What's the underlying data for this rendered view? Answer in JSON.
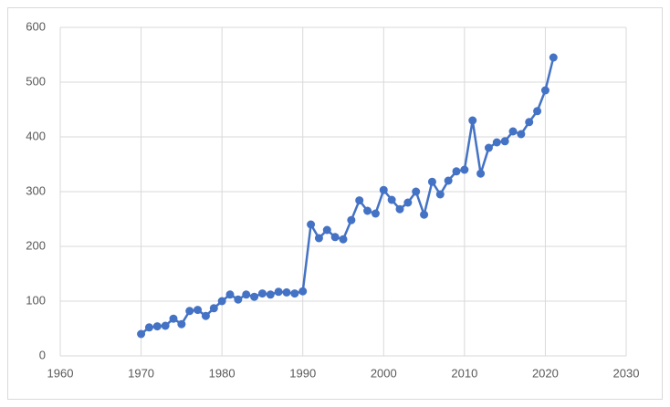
{
  "chart_data": {
    "type": "line",
    "x": [
      1970,
      1971,
      1972,
      1973,
      1974,
      1975,
      1976,
      1977,
      1978,
      1979,
      1980,
      1981,
      1982,
      1983,
      1984,
      1985,
      1986,
      1987,
      1988,
      1989,
      1990,
      1991,
      1992,
      1993,
      1994,
      1995,
      1996,
      1997,
      1998,
      1999,
      2000,
      2001,
      2002,
      2003,
      2004,
      2005,
      2006,
      2007,
      2008,
      2009,
      2010,
      2011,
      2012,
      2013,
      2014,
      2015,
      2016,
      2017,
      2018,
      2019,
      2020,
      2021
    ],
    "values": [
      40,
      52,
      54,
      55,
      68,
      58,
      82,
      84,
      73,
      87,
      100,
      112,
      103,
      112,
      108,
      114,
      112,
      117,
      116,
      114,
      118,
      240,
      215,
      230,
      217,
      213,
      248,
      284,
      265,
      260,
      303,
      285,
      268,
      280,
      300,
      258,
      318,
      295,
      320,
      337,
      340,
      430,
      333,
      380,
      390,
      392,
      410,
      405,
      427,
      447,
      485,
      545
    ],
    "color": "#4472c4",
    "xlim": [
      1960,
      2030
    ],
    "xticks": [
      1960,
      1970,
      1980,
      1990,
      2000,
      2010,
      2020,
      2030
    ],
    "ylim": [
      0,
      600
    ],
    "yticks": [
      0,
      100,
      200,
      300,
      400,
      500,
      600
    ],
    "grid": true
  }
}
